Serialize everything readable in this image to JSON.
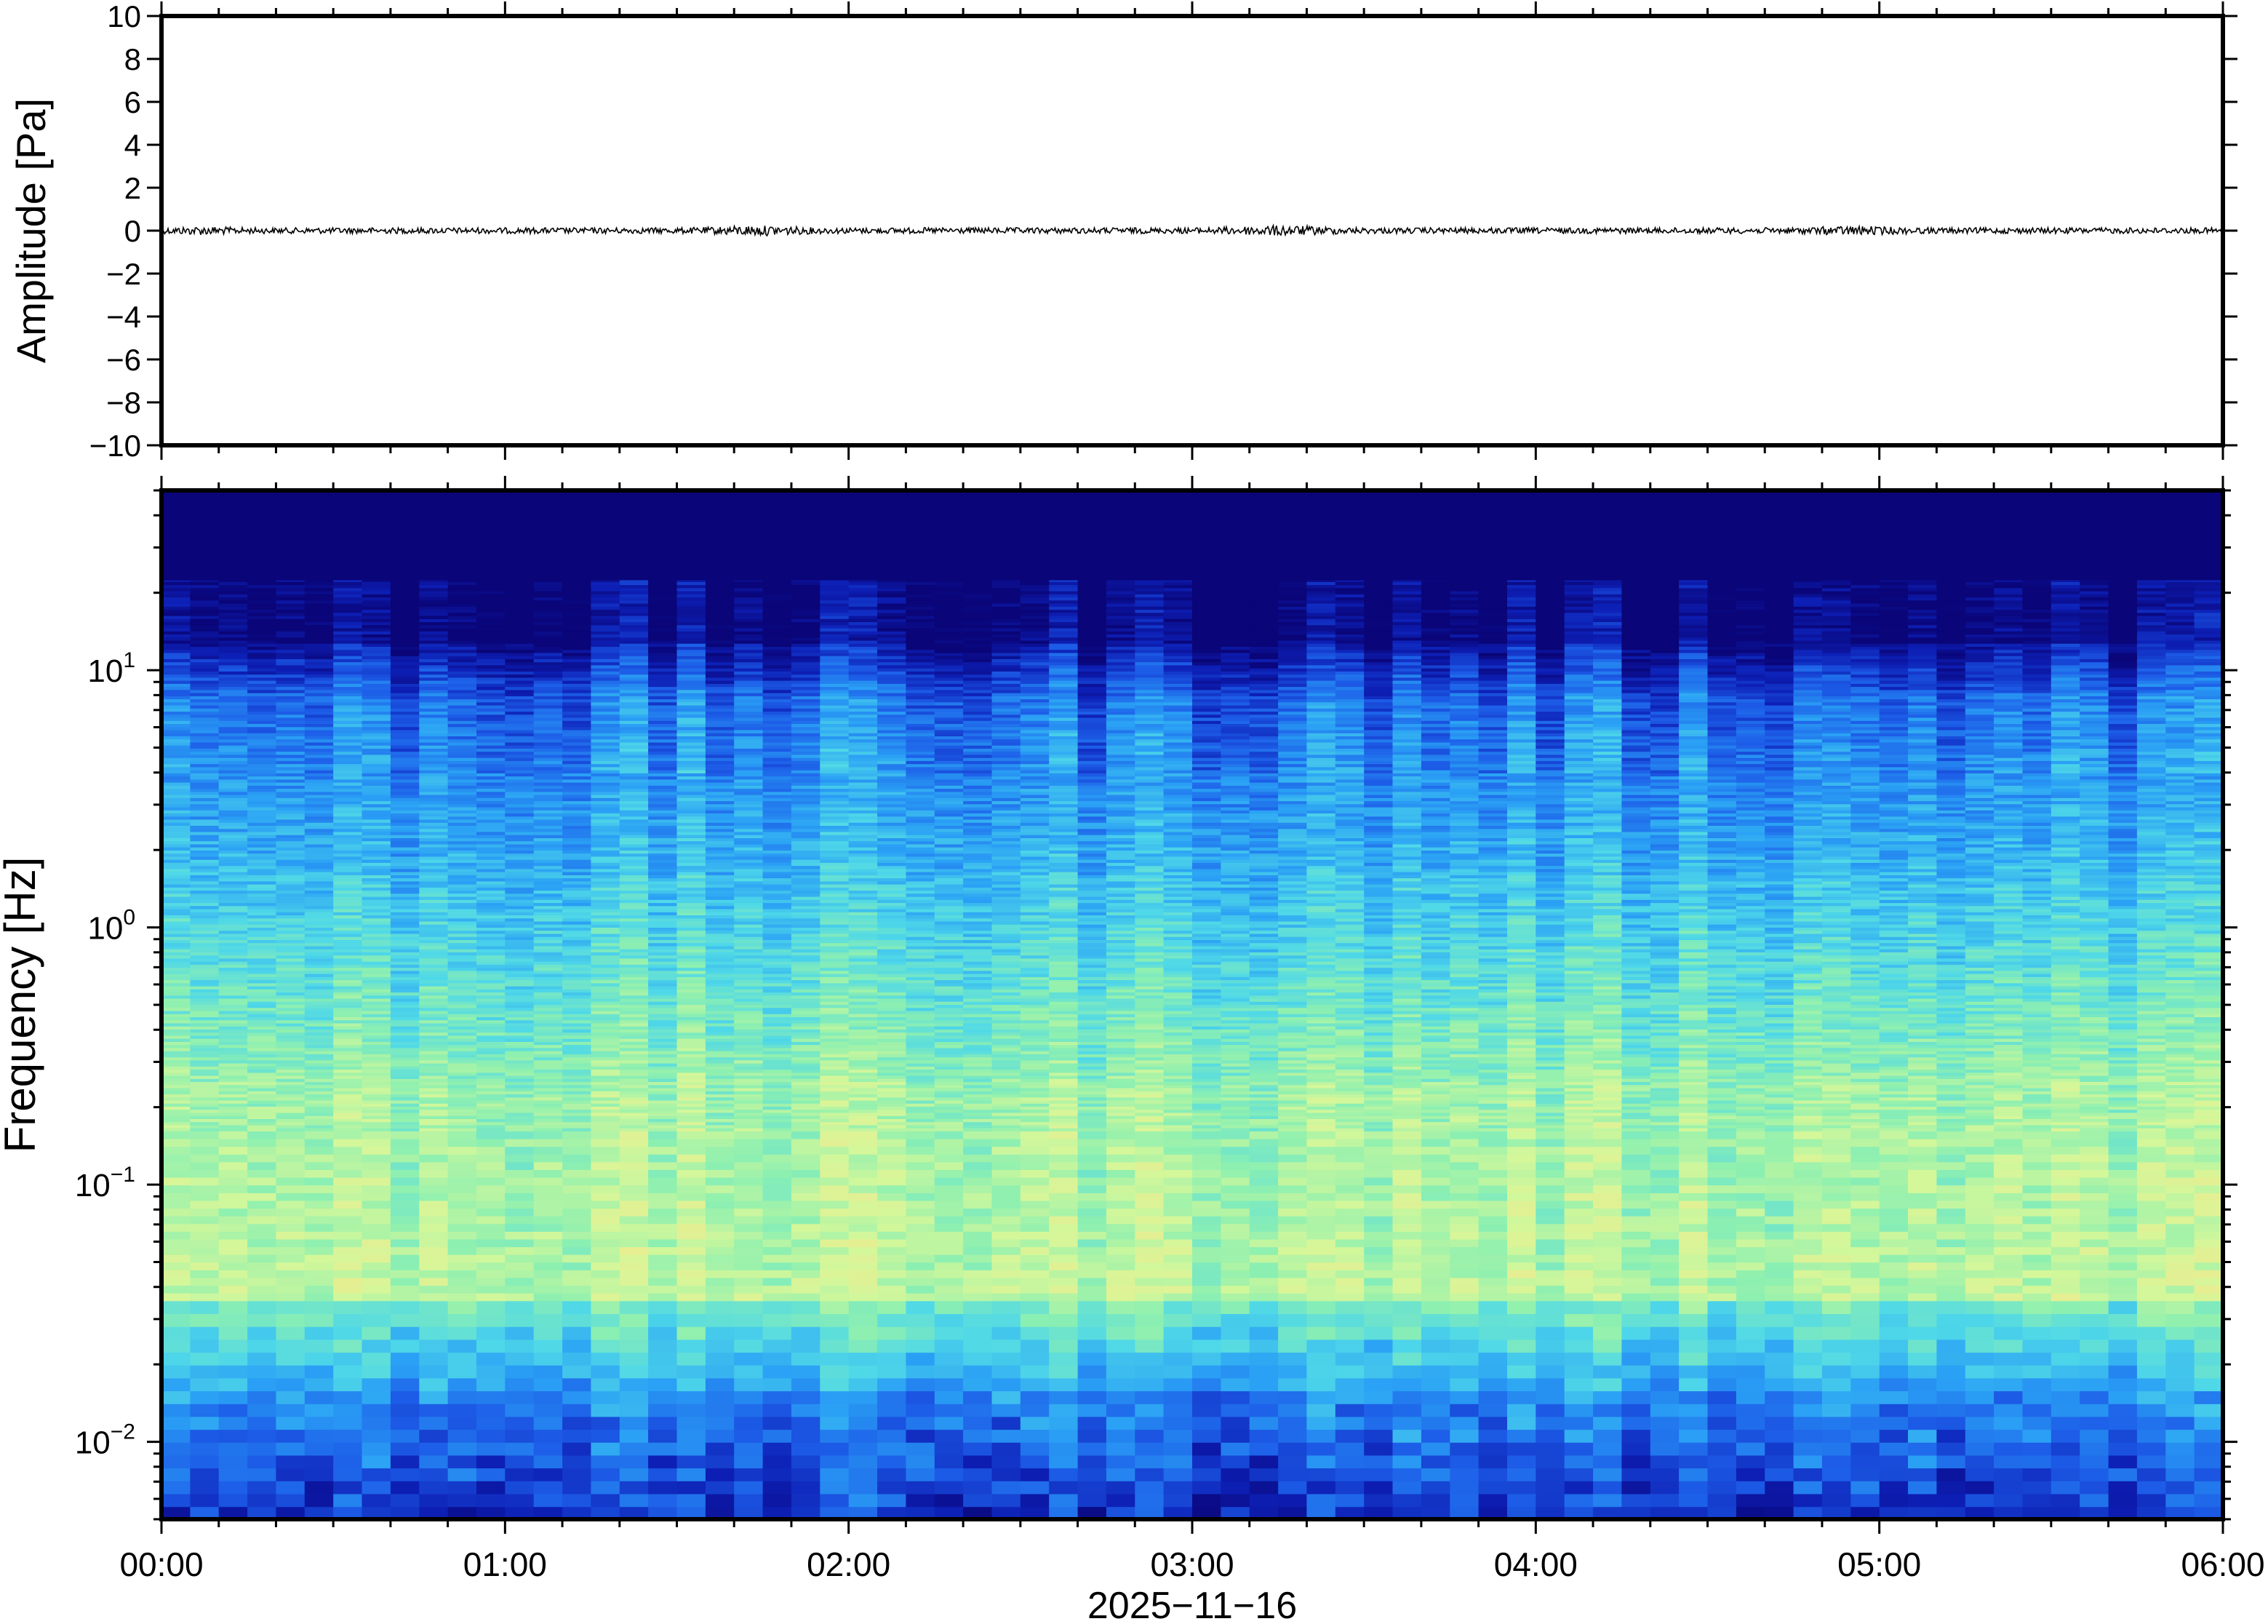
{
  "chart_data": [
    {
      "type": "line",
      "title": "",
      "xlabel": "",
      "ylabel": "Amplitude [Pa]",
      "xlim": [
        "2025-11-16 00:00",
        "2025-11-16 06:00"
      ],
      "ylim": [
        -10,
        10
      ],
      "y_ticks": [
        "10",
        "8",
        "6",
        "4",
        "2",
        "0",
        "−2",
        "−4",
        "−6",
        "−8",
        "−10"
      ],
      "y_tick_values": [
        10,
        8,
        6,
        4,
        2,
        0,
        -2,
        -4,
        -6,
        -8,
        -10
      ],
      "series": [
        {
          "name": "",
          "description_values": "noise trace near 0 Pa, peak about ±0.4 Pa",
          "color": "#000000"
        }
      ]
    },
    {
      "type": "heatmap",
      "title": "",
      "xlabel": "2025−11−16",
      "ylabel": "Frequency [Hz]",
      "x_ticks": [
        "00:00",
        "01:00",
        "02:00",
        "03:00",
        "04:00",
        "05:00",
        "06:00"
      ],
      "x_tick_values_hours": [
        0,
        1,
        2,
        3,
        4,
        5,
        6
      ],
      "y_scale": "log",
      "ylim": [
        0.005,
        50
      ],
      "y_ticks": [
        {
          "base": "10",
          "exp": "−2",
          "value": 0.01
        },
        {
          "base": "10",
          "exp": "−1",
          "value": 0.1
        },
        {
          "base": "10",
          "exp": "0",
          "value": 1
        },
        {
          "base": "10",
          "exp": "1",
          "value": 10
        }
      ],
      "colormap": [
        "#0a0578",
        "#0d1fb5",
        "#1d5ee8",
        "#2aa0f5",
        "#4fd8e8",
        "#8ef0b0",
        "#d4f79a",
        "#f5e68a",
        "#f7c27a"
      ],
      "grid": false
    }
  ]
}
